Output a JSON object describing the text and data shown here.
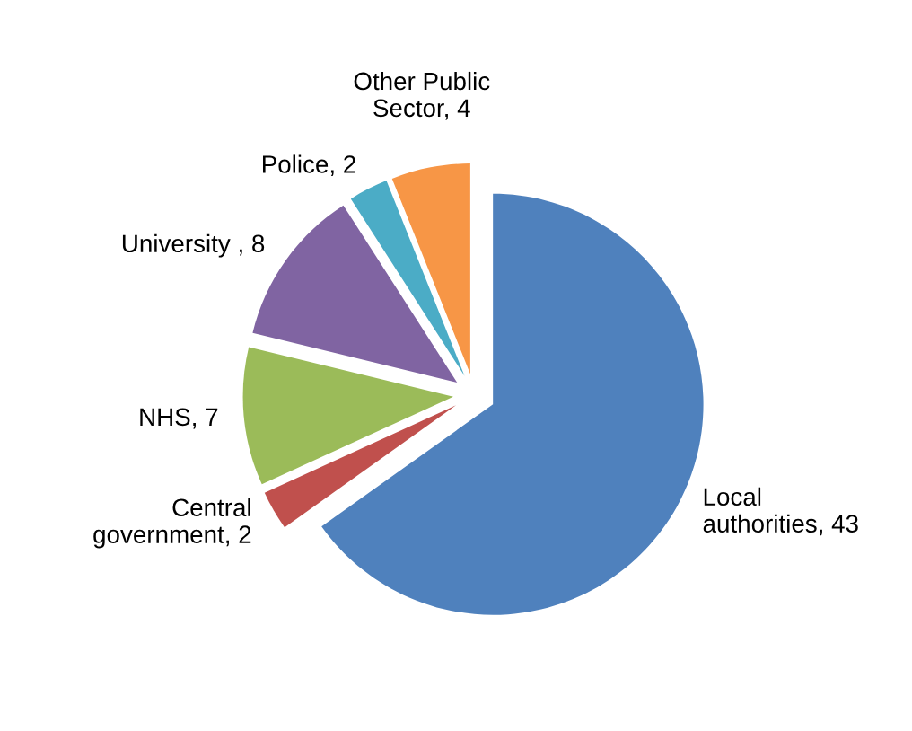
{
  "chart_data": {
    "type": "pie",
    "categories": [
      "Local authorities",
      "Central government",
      "NHS",
      "University ",
      "Police",
      "Other Public Sector"
    ],
    "values": [
      43,
      2,
      7,
      8,
      2,
      4
    ],
    "value_labels": [
      "43",
      "2",
      "7",
      "8",
      "2",
      "4"
    ],
    "colors": [
      "#4f81bd",
      "#c0504d",
      "#9bbb59",
      "#8064a2",
      "#4bacc6",
      "#f79646"
    ],
    "legend": false
  }
}
